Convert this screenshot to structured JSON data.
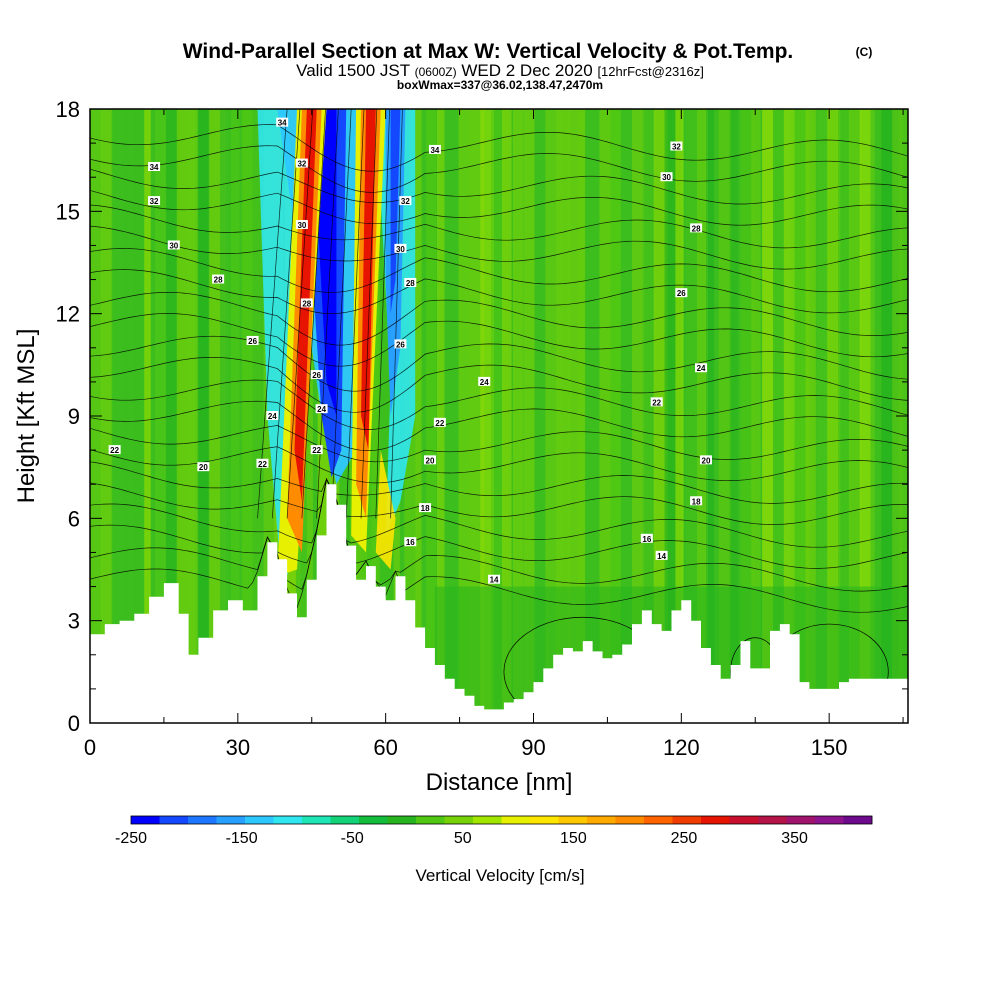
{
  "chart_data": {
    "type": "heatmap",
    "title": "Wind-Parallel Section at Max W: Vertical Velocity & Pot.Temp.",
    "title_mark": "(C)",
    "subtitle_1_a": "Valid 1500 JST",
    "subtitle_1_b": "(0600Z)",
    "subtitle_1_c": "WED 2 Dec 2020",
    "subtitle_1_d": "[12hrFcst@2316z]",
    "subtitle_2": "boxWmax=337@36.02,138.47,2470m",
    "xlabel": "Distance [nm]",
    "ylabel": "Height [Kft MSL]",
    "xlim": [
      0,
      166
    ],
    "ylim": [
      0,
      18
    ],
    "x_ticks": [
      "0",
      "30",
      "60",
      "90",
      "120",
      "150"
    ],
    "x_tick_values": [
      0,
      30,
      60,
      90,
      120,
      150
    ],
    "y_ticks": [
      "0",
      "3",
      "6",
      "9",
      "12",
      "15",
      "18"
    ],
    "y_tick_values": [
      0,
      3,
      6,
      9,
      12,
      15,
      18
    ],
    "colorbar": {
      "label": "Vertical Velocity [cm/s]",
      "tick_labels": [
        "-250",
        "-150",
        "-50",
        "50",
        "150",
        "250",
        "350"
      ],
      "tick_values": [
        -250,
        -150,
        -50,
        50,
        150,
        250,
        350
      ],
      "min": -250,
      "max": 420,
      "colors": [
        "#0000ff",
        "#1448ff",
        "#1e78ff",
        "#28a0ff",
        "#2dc8ff",
        "#30e6f0",
        "#1ee6b4",
        "#14d278",
        "#14be3c",
        "#28b41e",
        "#50c814",
        "#78d20a",
        "#a0e600",
        "#e6f000",
        "#ffe600",
        "#ffc800",
        "#ffaa00",
        "#ff8c00",
        "#ff6400",
        "#f03c00",
        "#e61400",
        "#c8102e",
        "#b41446",
        "#a0146e",
        "#8c148c",
        "#6e0a8c"
      ]
    },
    "terrain_profile": {
      "x": [
        0,
        3,
        6,
        9,
        12,
        15,
        18,
        20,
        22,
        25,
        28,
        31,
        34,
        36,
        38,
        40,
        42,
        44,
        46,
        48,
        50,
        52,
        54,
        56,
        58,
        60,
        62,
        64,
        66,
        68,
        70,
        72,
        74,
        76,
        78,
        80,
        82,
        84,
        86,
        88,
        90,
        92,
        94,
        96,
        98,
        100,
        102,
        104,
        106,
        108,
        110,
        112,
        114,
        116,
        118,
        120,
        122,
        124,
        126,
        128,
        130,
        132,
        134,
        136,
        138,
        140,
        142,
        144,
        146,
        148,
        150,
        152,
        154,
        156,
        158,
        160,
        162,
        166
      ],
      "height": [
        2.6,
        2.9,
        3.0,
        3.2,
        3.7,
        4.1,
        3.2,
        2.0,
        2.5,
        3.3,
        3.6,
        3.3,
        4.3,
        5.3,
        4.8,
        3.8,
        3.1,
        4.2,
        5.5,
        7.0,
        6.4,
        5.2,
        4.2,
        4.6,
        4.0,
        3.6,
        4.3,
        3.6,
        2.8,
        2.2,
        1.7,
        1.3,
        1.0,
        0.8,
        0.5,
        0.4,
        0.4,
        0.6,
        0.7,
        0.9,
        1.2,
        1.6,
        2.0,
        2.2,
        2.1,
        2.4,
        2.1,
        1.9,
        2.0,
        2.3,
        2.9,
        3.3,
        2.9,
        2.7,
        3.3,
        3.6,
        3.0,
        2.2,
        1.7,
        1.3,
        1.7,
        2.4,
        1.6,
        1.6,
        2.7,
        2.9,
        2.6,
        1.2,
        1.0,
        1.0,
        1.0,
        1.2,
        1.3,
        1.3,
        1.3,
        1.3,
        1.3,
        1.3
      ]
    },
    "vertical_velocity_features": [
      {
        "name": "updraft-left-band",
        "x_base": 43,
        "x_top": 50,
        "y_base": 4.5,
        "y_top": 18,
        "w_max": 337
      },
      {
        "name": "downdraft-core",
        "x_base": 50,
        "x_top": 47,
        "y_base": 7.0,
        "y_top": 18,
        "w_min": -250
      },
      {
        "name": "updraft-right-band",
        "x_base": 55,
        "x_top": 58,
        "y_base": 5.5,
        "y_top": 18,
        "w_max": 300
      },
      {
        "name": "downdraft-right",
        "x_base": 63,
        "x_top": 61,
        "y_base": 6.0,
        "y_top": 18,
        "w_min": -180
      }
    ],
    "theta_contours": {
      "levels": [
        14,
        16,
        18,
        20,
        22,
        24,
        26,
        28,
        30,
        32,
        34
      ],
      "labels": [
        {
          "text": "34",
          "x": 13,
          "y": 16.3
        },
        {
          "text": "32",
          "x": 13,
          "y": 15.3
        },
        {
          "text": "30",
          "x": 17,
          "y": 14.0
        },
        {
          "text": "28",
          "x": 26,
          "y": 13.0
        },
        {
          "text": "26",
          "x": 33,
          "y": 11.2
        },
        {
          "text": "22",
          "x": 5,
          "y": 8.0
        },
        {
          "text": "20",
          "x": 23,
          "y": 7.5
        },
        {
          "text": "24",
          "x": 37,
          "y": 9.0
        },
        {
          "text": "22",
          "x": 35,
          "y": 7.6
        },
        {
          "text": "34",
          "x": 39,
          "y": 17.6
        },
        {
          "text": "32",
          "x": 43,
          "y": 16.4
        },
        {
          "text": "30",
          "x": 43,
          "y": 14.6
        },
        {
          "text": "28",
          "x": 44,
          "y": 12.3
        },
        {
          "text": "26",
          "x": 46,
          "y": 10.2
        },
        {
          "text": "24",
          "x": 47,
          "y": 9.2
        },
        {
          "text": "22",
          "x": 46,
          "y": 8.0
        },
        {
          "text": "34",
          "x": 70,
          "y": 16.8
        },
        {
          "text": "32",
          "x": 64,
          "y": 15.3
        },
        {
          "text": "30",
          "x": 63,
          "y": 13.9
        },
        {
          "text": "28",
          "x": 65,
          "y": 12.9
        },
        {
          "text": "26",
          "x": 63,
          "y": 11.1
        },
        {
          "text": "24",
          "x": 80,
          "y": 10.0
        },
        {
          "text": "22",
          "x": 71,
          "y": 8.8
        },
        {
          "text": "20",
          "x": 69,
          "y": 7.7
        },
        {
          "text": "18",
          "x": 68,
          "y": 6.3
        },
        {
          "text": "16",
          "x": 65,
          "y": 5.3
        },
        {
          "text": "14",
          "x": 82,
          "y": 4.2
        },
        {
          "text": "32",
          "x": 119,
          "y": 16.9
        },
        {
          "text": "30",
          "x": 117,
          "y": 16.0
        },
        {
          "text": "28",
          "x": 123,
          "y": 14.5
        },
        {
          "text": "26",
          "x": 120,
          "y": 12.6
        },
        {
          "text": "24",
          "x": 124,
          "y": 10.4
        },
        {
          "text": "22",
          "x": 115,
          "y": 9.4
        },
        {
          "text": "20",
          "x": 125,
          "y": 7.7
        },
        {
          "text": "18",
          "x": 123,
          "y": 6.5
        },
        {
          "text": "16",
          "x": 113,
          "y": 5.4
        },
        {
          "text": "14",
          "x": 116,
          "y": 4.9
        }
      ]
    }
  }
}
